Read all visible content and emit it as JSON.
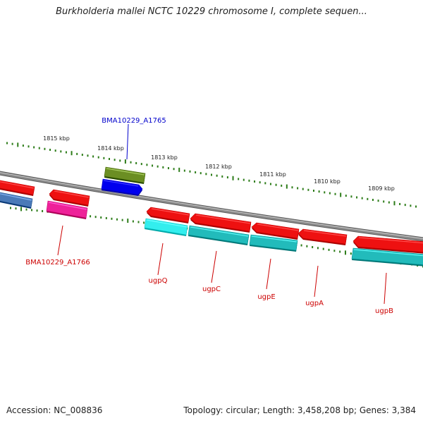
{
  "title": "Burkholderia mallei NCTC 10229 chromosome I, complete sequen...",
  "footer": {
    "accession": "Accession: NC_008836",
    "topology": "Topology: circular; Length: 3,458,208 bp; Genes: 3,384"
  },
  "colors": {
    "backbone": "#8a8a8a",
    "tick": "#2e7d1a",
    "label_red": "#cc0000",
    "label_blue": "#0000cc",
    "gene_red": "#ee1111",
    "gene_cyan_row_upper": "#33eeee",
    "gene_cyan_row_lower": "#22bbbb",
    "gene_pink": "#ee2299",
    "gene_olive": "#6b8e23",
    "gene_blue": "#0000ee",
    "gene_steelblue": "#4a7ab8"
  },
  "ticks": [
    "1815 kbp",
    "1814 kbp",
    "1813 kbp",
    "1812 kbp",
    "1811 kbp",
    "1810 kbp",
    "1809 kbp"
  ],
  "features": [
    {
      "id": "f-red-left",
      "color": "gene_red"
    },
    {
      "id": "f-steel-left",
      "color": "gene_steelblue"
    },
    {
      "id": "f-red-a1766",
      "color": "gene_red"
    },
    {
      "id": "f-pink-a1766",
      "color": "gene_pink",
      "label": "BMA10229_A1766"
    },
    {
      "id": "f-olive-a1765",
      "color": "gene_olive",
      "label": "BMA10229_A1765"
    },
    {
      "id": "f-blue-a1765",
      "color": "gene_blue"
    },
    {
      "id": "f-ugpQ",
      "color": "gene_red",
      "label": "ugpQ"
    },
    {
      "id": "f-ugpQ-cyan",
      "color": "gene_cyan_row_upper"
    },
    {
      "id": "f-ugpC",
      "color": "gene_red",
      "label": "ugpC"
    },
    {
      "id": "f-ugpC-cyan",
      "color": "gene_cyan_row_lower"
    },
    {
      "id": "f-ugpE",
      "color": "gene_red",
      "label": "ugpE"
    },
    {
      "id": "f-ugpE-cyan",
      "color": "gene_cyan_row_lower"
    },
    {
      "id": "f-ugpA",
      "color": "gene_red",
      "label": "ugpA"
    },
    {
      "id": "f-ugpB",
      "color": "gene_red",
      "label": "ugpB"
    },
    {
      "id": "f-ugpB-cyan",
      "color": "gene_cyan_row_lower"
    }
  ]
}
